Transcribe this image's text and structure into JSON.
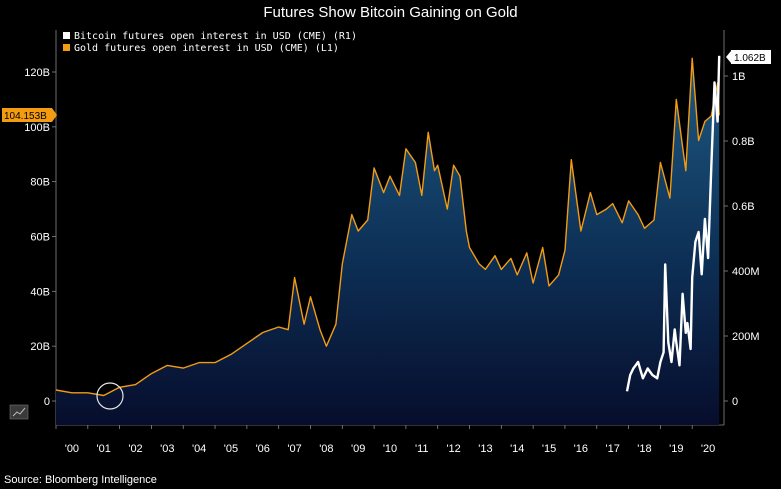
{
  "chart_data": {
    "type": "line",
    "title": "Futures Show Bitcoin Gaining on Gold",
    "source": "Source: Bloomberg Intelligence",
    "x_tick_labels": [
      "'00",
      "'01",
      "'02",
      "'03",
      "'04",
      "'05",
      "'06",
      "'07",
      "'08",
      "'09",
      "'10",
      "'11",
      "'12",
      "'13",
      "'14",
      "'15",
      "'16",
      "'17",
      "'18",
      "'19",
      "'20"
    ],
    "x_range": [
      2000.0,
      2021.0
    ],
    "left_axis": {
      "tick_labels": [
        "0",
        "20B",
        "40B",
        "60B",
        "80B",
        "100B",
        "120B"
      ],
      "ylim": [
        0,
        130
      ],
      "unit": "B"
    },
    "right_axis": {
      "tick_labels": [
        "0",
        "200M",
        "400M",
        "0.6B",
        "0.8B",
        "1B"
      ],
      "ylim": [
        0,
        1.1
      ],
      "unit": "B"
    },
    "legend": {
      "placement": "top-left",
      "entries": [
        {
          "label": "Bitcoin futures open interest in USD (CME) (R1)",
          "color": "#ffffff"
        },
        {
          "label": "Gold futures open interest in USD (CME) (L1)",
          "color": "#f39c12"
        }
      ]
    },
    "last_value_markers": {
      "left": "104.153B",
      "right": "1.062B"
    },
    "series": [
      {
        "name": "Gold futures open interest in USD (CME) (L1)",
        "axis": "left",
        "color": "#f39c12",
        "fill": "gradient-blue",
        "x": [
          2000.0,
          2000.5,
          2001.0,
          2001.5,
          2002.0,
          2002.5,
          2003.0,
          2003.5,
          2004.0,
          2004.5,
          2005.0,
          2005.5,
          2006.0,
          2006.5,
          2007.0,
          2007.3,
          2007.5,
          2007.8,
          2008.0,
          2008.3,
          2008.5,
          2008.8,
          2009.0,
          2009.3,
          2009.5,
          2009.8,
          2010.0,
          2010.3,
          2010.5,
          2010.8,
          2011.0,
          2011.3,
          2011.5,
          2011.7,
          2011.9,
          2012.0,
          2012.3,
          2012.5,
          2012.7,
          2012.9,
          2013.0,
          2013.3,
          2013.5,
          2013.8,
          2014.0,
          2014.3,
          2014.5,
          2014.8,
          2015.0,
          2015.3,
          2015.5,
          2015.8,
          2016.0,
          2016.2,
          2016.5,
          2016.8,
          2017.0,
          2017.3,
          2017.5,
          2017.8,
          2018.0,
          2018.3,
          2018.5,
          2018.8,
          2019.0,
          2019.3,
          2019.5,
          2019.8,
          2020.0,
          2020.2,
          2020.4,
          2020.6,
          2020.8,
          2020.85
        ],
        "y": [
          4,
          3,
          3,
          2,
          5,
          6,
          10,
          13,
          12,
          14,
          14,
          17,
          21,
          25,
          27,
          26,
          45,
          28,
          38,
          26,
          20,
          28,
          50,
          68,
          62,
          66,
          85,
          76,
          82,
          75,
          92,
          87,
          75,
          98,
          84,
          86,
          70,
          86,
          82,
          62,
          56,
          50,
          48,
          53,
          48,
          52,
          46,
          54,
          43,
          56,
          42,
          46,
          55,
          88,
          62,
          76,
          68,
          70,
          72,
          65,
          73,
          68,
          63,
          66,
          87,
          74,
          110,
          84,
          125,
          95,
          102,
          104,
          116,
          104.153
        ]
      },
      {
        "name": "Bitcoin futures open interest in USD (CME) (R1)",
        "axis": "right",
        "color": "#ffffff",
        "x": [
          2017.95,
          2018.05,
          2018.15,
          2018.3,
          2018.45,
          2018.6,
          2018.75,
          2018.9,
          2019.0,
          2019.1,
          2019.15,
          2019.25,
          2019.35,
          2019.45,
          2019.5,
          2019.6,
          2019.7,
          2019.8,
          2019.85,
          2019.95,
          2020.0,
          2020.1,
          2020.2,
          2020.3,
          2020.4,
          2020.5,
          2020.6,
          2020.7,
          2020.8,
          2020.85
        ],
        "y": [
          0.03,
          0.08,
          0.1,
          0.12,
          0.07,
          0.1,
          0.08,
          0.07,
          0.12,
          0.15,
          0.42,
          0.18,
          0.12,
          0.22,
          0.18,
          0.11,
          0.33,
          0.21,
          0.24,
          0.16,
          0.38,
          0.49,
          0.52,
          0.39,
          0.56,
          0.44,
          0.72,
          0.98,
          0.86,
          1.062
        ]
      }
    ]
  }
}
